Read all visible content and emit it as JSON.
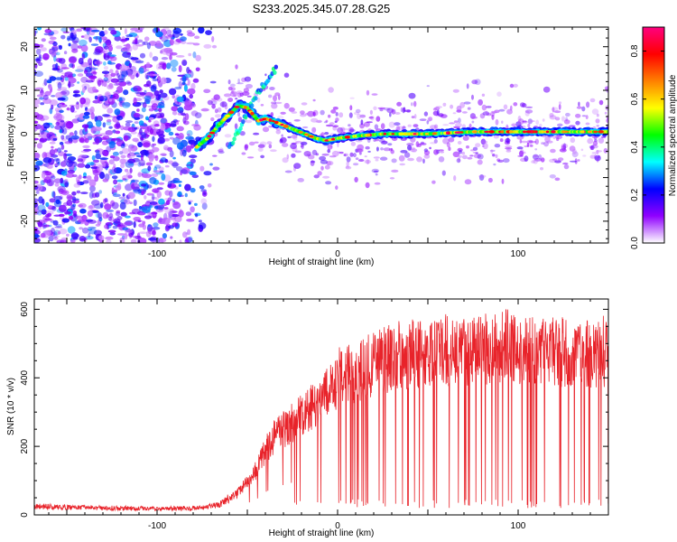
{
  "figure": {
    "title": "S233.2025.345.07.28.G25"
  },
  "chart_data": [
    {
      "type": "heatmap",
      "title": "S233.2025.345.07.28.G25",
      "xlabel": "Height of straight line (km)",
      "ylabel": "Frequency (Hz)",
      "xlim": [
        -168,
        150
      ],
      "ylim": [
        -25,
        24.5
      ],
      "xticks": [
        -100,
        0,
        100
      ],
      "yticks": [
        -20,
        -10,
        0,
        10,
        20
      ],
      "grid": false,
      "colorbar": {
        "label": "Normalized spectral amplitude",
        "range": [
          0,
          0.9
        ],
        "ticks": [
          0,
          0.2,
          0.4,
          0.6,
          0.8
        ],
        "colormap": [
          "#ffffff",
          "#9000ff",
          "#0000ff",
          "#00ffff",
          "#00ff00",
          "#ffff00",
          "#ff8000",
          "#ff0000",
          "#ff0080"
        ]
      },
      "signal_ridge": {
        "x": [
          -78,
          -72,
          -66,
          -60,
          -55,
          -50,
          -44,
          -40,
          -36,
          -30,
          -24,
          -18,
          -12,
          -6,
          0,
          10,
          25,
          50,
          75,
          100,
          125,
          150
        ],
        "frequency": [
          -3,
          -1,
          2,
          4.5,
          6.5,
          6,
          3,
          3.5,
          3,
          2,
          1,
          0,
          -1,
          -1.5,
          -1,
          -0.5,
          0,
          0,
          0.5,
          0.5,
          0.5,
          0.5
        ],
        "peak_amplitude": 0.9
      },
      "secondary_trace": {
        "x": [
          -60,
          -52,
          -45,
          -38,
          -34
        ],
        "frequency": [
          -3,
          3,
          9,
          13,
          15
        ]
      },
      "noise_region": {
        "x_range": [
          -168,
          -68
        ],
        "frequency_range": [
          -25,
          24.5
        ],
        "amplitude_range": [
          0.05,
          0.3
        ]
      }
    },
    {
      "type": "line",
      "xlabel": "Height of straight line (km)",
      "ylabel": "SNR (10 * v/v)",
      "xlim": [
        -168,
        150
      ],
      "ylim": [
        0,
        630
      ],
      "xticks": [
        -100,
        0,
        100
      ],
      "yticks": [
        0,
        200,
        400,
        600
      ],
      "grid": false,
      "line_color": "#e8232a",
      "series": [
        {
          "x": [
            -168,
            -150,
            -125,
            -100,
            -75,
            -65,
            -55,
            -45,
            -40,
            -35,
            -30,
            -25,
            -20,
            -15,
            -10,
            -5,
            0,
            5,
            10,
            15,
            20,
            25,
            30,
            40,
            50,
            60,
            70,
            80,
            90,
            95,
            100,
            110,
            120,
            130,
            140,
            150
          ],
          "values": [
            25,
            22,
            20,
            18,
            20,
            30,
            65,
            130,
            190,
            230,
            250,
            270,
            290,
            310,
            330,
            360,
            400,
            410,
            420,
            430,
            440,
            450,
            460,
            470,
            475,
            480,
            480,
            485,
            490,
            495,
            490,
            480,
            475,
            470,
            470,
            480
          ],
          "dropout_floor": 20,
          "dropout_start_x": -25
        }
      ]
    }
  ]
}
